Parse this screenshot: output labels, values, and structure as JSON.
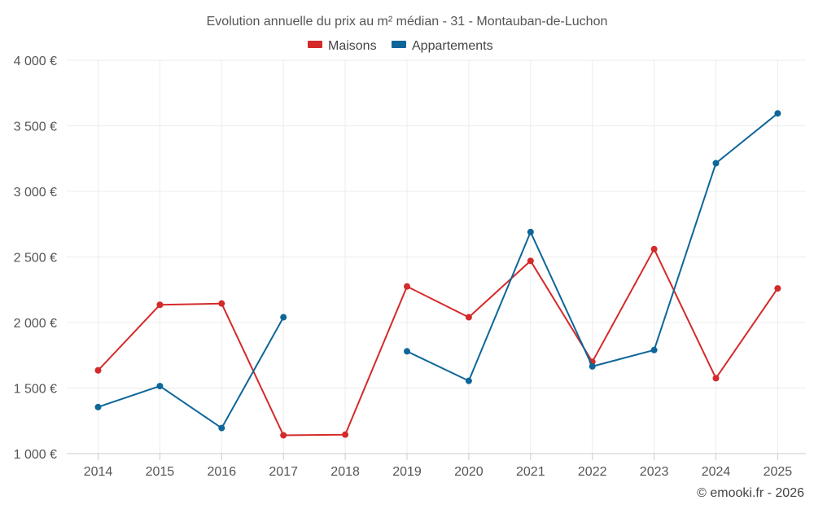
{
  "chart_data": {
    "type": "line",
    "title": "Evolution annuelle du prix au m² médian - 31 - Montauban-de-Luchon",
    "x": [
      "2014",
      "2015",
      "2016",
      "2017",
      "2018",
      "2019",
      "2020",
      "2021",
      "2022",
      "2023",
      "2024",
      "2025"
    ],
    "y_ticks": [
      1000,
      1500,
      2000,
      2500,
      3000,
      3500,
      4000
    ],
    "y_tick_labels": [
      "1 000 €",
      "1 500 €",
      "2 000 €",
      "2 500 €",
      "3 000 €",
      "3 500 €",
      "4 000 €"
    ],
    "ylim": [
      1000,
      4000
    ],
    "grid": true,
    "legend_position": "top-center",
    "series": [
      {
        "name": "Maisons",
        "color": "#d42a2a",
        "values": [
          1635,
          2135,
          2145,
          1140,
          1145,
          2275,
          2040,
          2470,
          1700,
          2560,
          1575,
          2260
        ]
      },
      {
        "name": "Appartements",
        "color": "#0e6699",
        "values": [
          1355,
          1515,
          1195,
          2040,
          null,
          1780,
          1555,
          2690,
          1665,
          1790,
          3215,
          3595
        ]
      }
    ],
    "credit": "© emooki.fr - 2026"
  }
}
